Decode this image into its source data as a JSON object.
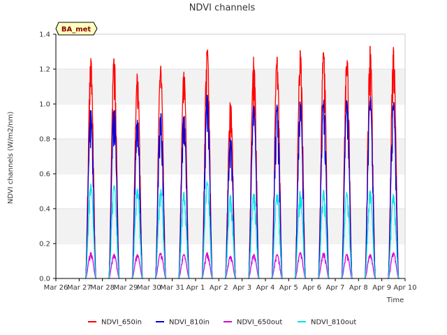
{
  "chart_data": {
    "type": "line",
    "title": "NDVI channels",
    "xlabel": "Time",
    "ylabel": "NDVI channels (W/m2/nm)",
    "ylim": [
      0.0,
      1.4
    ],
    "yticks": [
      0.0,
      0.2,
      0.4,
      0.6,
      0.8,
      1.0,
      1.2,
      1.4
    ],
    "ytick_labels": [
      "0.0",
      "0.2",
      "0.4",
      "0.6",
      "0.8",
      "1.0",
      "1.2",
      "1.4"
    ],
    "xlim": [
      0,
      15
    ],
    "x_unit": "days since Mar 26 00:00",
    "xtick_labels": [
      "Mar 26",
      "Mar 27",
      "Mar 28",
      "Mar 29",
      "Mar 30",
      "Mar 31",
      "Apr 1",
      "Apr 2",
      "Apr 3",
      "Apr 4",
      "Apr 5",
      "Apr 6",
      "Apr 7",
      "Apr 8",
      "Apr 9",
      "Apr 10"
    ],
    "grid": "horizontal bands",
    "legend_position": "bottom",
    "badge": "BA_met",
    "daily_peak_time": 0.5,
    "daily_halfwidth": 0.22,
    "series": [
      {
        "name": "NDVI_650in",
        "color": "#ff0000",
        "days": [
          1,
          2,
          3,
          4,
          5,
          6,
          7,
          8,
          9,
          10,
          11,
          12,
          13,
          14
        ],
        "peaks": [
          1.27,
          1.29,
          1.18,
          1.23,
          1.2,
          1.34,
          1.04,
          1.28,
          1.28,
          1.32,
          1.33,
          1.29,
          1.34,
          1.33
        ]
      },
      {
        "name": "NDVI_810in",
        "color": "#0000dd",
        "days": [
          1,
          2,
          3,
          4,
          5,
          6,
          7,
          8,
          9,
          10,
          11,
          12,
          13,
          14
        ],
        "peaks": [
          0.98,
          1.01,
          0.93,
          0.97,
          0.95,
          1.06,
          0.82,
          1.0,
          1.0,
          1.03,
          1.04,
          1.03,
          1.05,
          1.03
        ]
      },
      {
        "name": "NDVI_650out",
        "color": "#dd00dd",
        "days": [
          1,
          2,
          3,
          4,
          5,
          6,
          7,
          8,
          9,
          10,
          11,
          12,
          13,
          14
        ],
        "peaks": [
          0.15,
          0.14,
          0.14,
          0.15,
          0.14,
          0.15,
          0.13,
          0.14,
          0.14,
          0.15,
          0.15,
          0.14,
          0.14,
          0.15
        ]
      },
      {
        "name": "NDVI_810out",
        "color": "#00e5e5",
        "days": [
          1,
          2,
          3,
          4,
          5,
          6,
          7,
          8,
          9,
          10,
          11,
          12,
          13,
          14
        ],
        "peaks": [
          0.55,
          0.55,
          0.52,
          0.52,
          0.5,
          0.56,
          0.48,
          0.5,
          0.5,
          0.51,
          0.51,
          0.5,
          0.51,
          0.49
        ]
      }
    ]
  }
}
